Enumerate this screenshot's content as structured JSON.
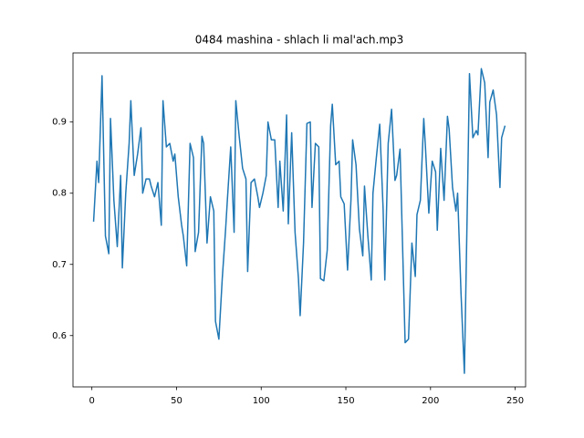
{
  "chart_data": {
    "type": "line",
    "title": "0484 mashina - shlach li mal'ach.mp3",
    "x": [
      1,
      3,
      4,
      6,
      8,
      10,
      11,
      13,
      15,
      17,
      18,
      20,
      22,
      23,
      25,
      27,
      29,
      30,
      32,
      34,
      35,
      37,
      39,
      41,
      42,
      44,
      46,
      48,
      49,
      51,
      53,
      54,
      56,
      58,
      60,
      61,
      63,
      65,
      66,
      68,
      70,
      72,
      73,
      75,
      77,
      79,
      80,
      82,
      84,
      85,
      87,
      89,
      91,
      92,
      94,
      96,
      98,
      99,
      101,
      103,
      104,
      106,
      108,
      110,
      111,
      113,
      115,
      116,
      118,
      120,
      122,
      123,
      125,
      127,
      129,
      130,
      132,
      134,
      135,
      137,
      139,
      141,
      142,
      144,
      146,
      147,
      149,
      151,
      153,
      154,
      156,
      158,
      160,
      161,
      163,
      165,
      166,
      168,
      170,
      172,
      173,
      175,
      177,
      179,
      180,
      182,
      184,
      185,
      187,
      189,
      191,
      192,
      194,
      196,
      197,
      199,
      201,
      203,
      204,
      206,
      208,
      210,
      211,
      213,
      215,
      216,
      218,
      220,
      222,
      223,
      225,
      227,
      228,
      230,
      232,
      234,
      235,
      237,
      239,
      241,
      242,
      244
    ],
    "series": [
      {
        "color": "#1f77b4",
        "values": [
          0.76,
          0.845,
          0.815,
          0.965,
          0.74,
          0.715,
          0.905,
          0.79,
          0.725,
          0.825,
          0.695,
          0.8,
          0.87,
          0.93,
          0.825,
          0.855,
          0.892,
          0.8,
          0.82,
          0.82,
          0.81,
          0.795,
          0.815,
          0.755,
          0.93,
          0.865,
          0.87,
          0.845,
          0.855,
          0.795,
          0.755,
          0.74,
          0.698,
          0.87,
          0.85,
          0.718,
          0.745,
          0.88,
          0.87,
          0.73,
          0.795,
          0.775,
          0.62,
          0.595,
          0.68,
          0.75,
          0.79,
          0.865,
          0.745,
          0.93,
          0.88,
          0.835,
          0.82,
          0.69,
          0.815,
          0.82,
          0.795,
          0.78,
          0.8,
          0.825,
          0.9,
          0.875,
          0.875,
          0.78,
          0.845,
          0.775,
          0.91,
          0.757,
          0.885,
          0.745,
          0.68,
          0.628,
          0.73,
          0.898,
          0.9,
          0.78,
          0.87,
          0.865,
          0.68,
          0.677,
          0.72,
          0.895,
          0.925,
          0.84,
          0.845,
          0.795,
          0.785,
          0.692,
          0.79,
          0.875,
          0.84,
          0.75,
          0.712,
          0.81,
          0.74,
          0.678,
          0.8,
          0.85,
          0.897,
          0.778,
          0.678,
          0.87,
          0.918,
          0.818,
          0.825,
          0.862,
          0.68,
          0.59,
          0.595,
          0.73,
          0.683,
          0.77,
          0.79,
          0.905,
          0.865,
          0.772,
          0.845,
          0.83,
          0.748,
          0.863,
          0.79,
          0.908,
          0.89,
          0.808,
          0.775,
          0.8,
          0.66,
          0.547,
          0.82,
          0.968,
          0.878,
          0.888,
          0.882,
          0.975,
          0.955,
          0.85,
          0.928,
          0.945,
          0.91,
          0.808,
          0.878,
          0.895
        ]
      }
    ],
    "xlim": [
      -11.15,
      256.15
    ],
    "xticks": [
      0,
      50,
      100,
      150,
      200,
      250
    ],
    "ylim": [
      0.5279,
      0.9971
    ],
    "yticks": [
      0.6,
      0.7,
      0.8,
      0.9
    ]
  }
}
